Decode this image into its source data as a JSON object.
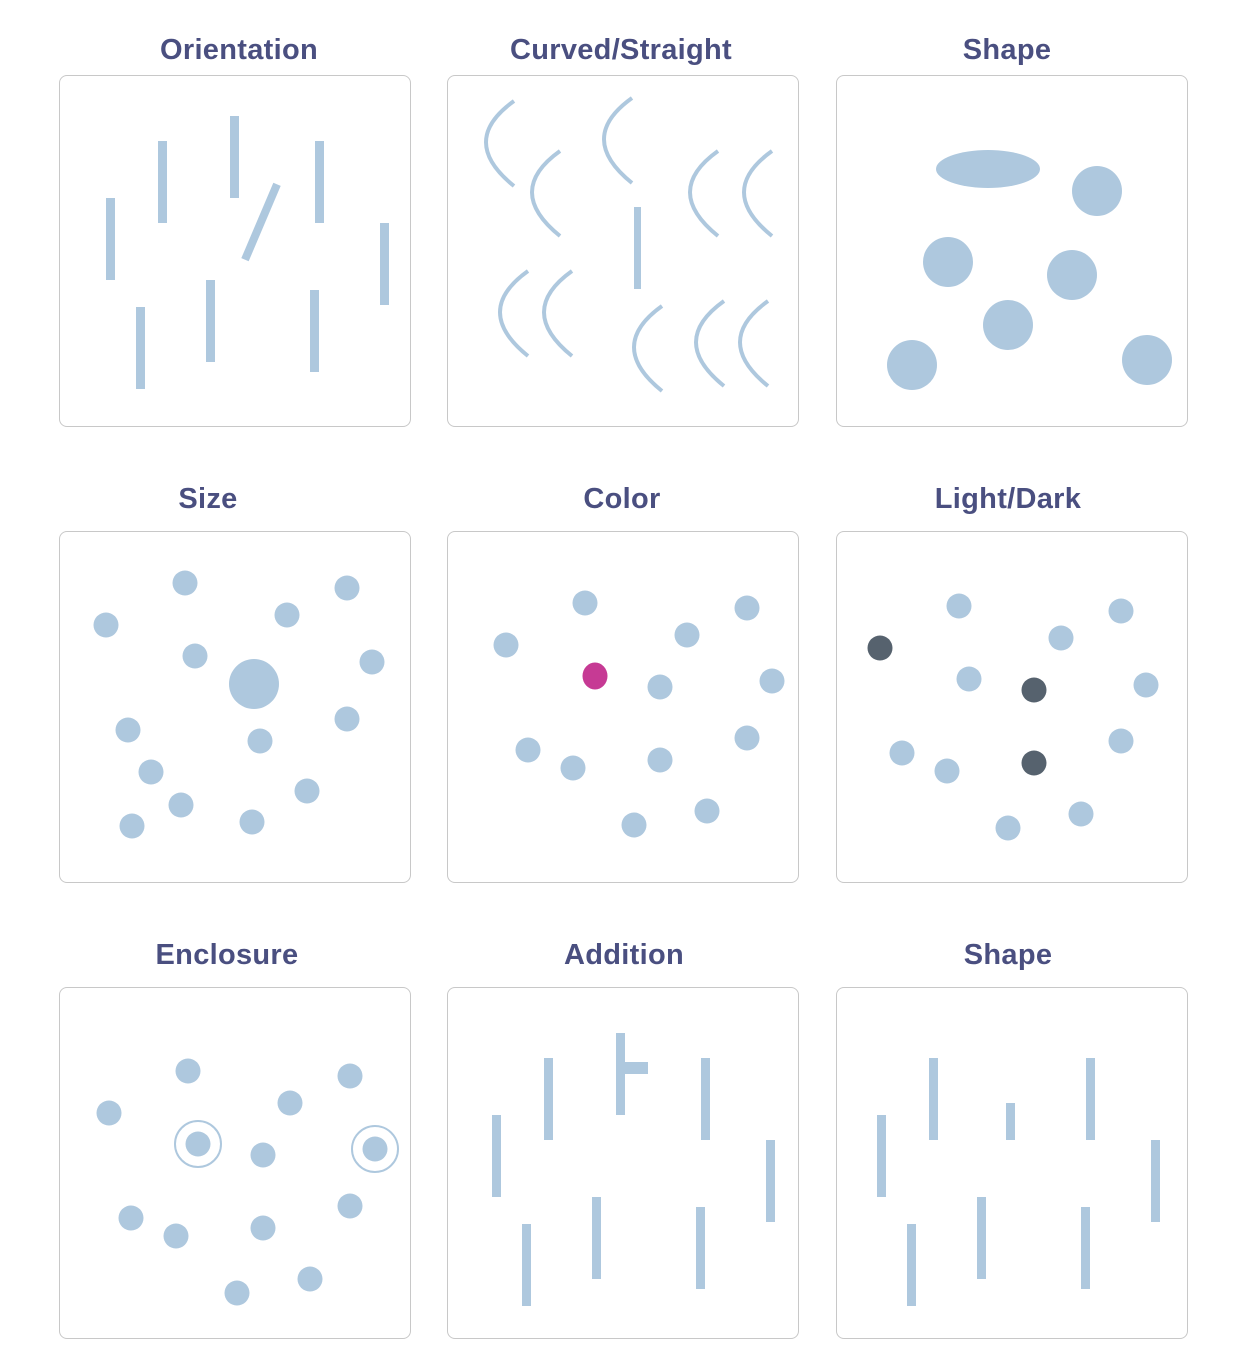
{
  "colors": {
    "mark": "#aec8de",
    "accent": "#c63a94",
    "dark": "#56626e",
    "title": "#4a4f80",
    "border": "#c8c8c8"
  },
  "panels": [
    {
      "title": "Orientation"
    },
    {
      "title": "Curved/Straight"
    },
    {
      "title": "Shape"
    },
    {
      "title": "Size"
    },
    {
      "title": "Color"
    },
    {
      "title": "Light/Dark"
    },
    {
      "title": "Enclosure"
    },
    {
      "title": "Addition"
    },
    {
      "title": "Shape"
    }
  ]
}
